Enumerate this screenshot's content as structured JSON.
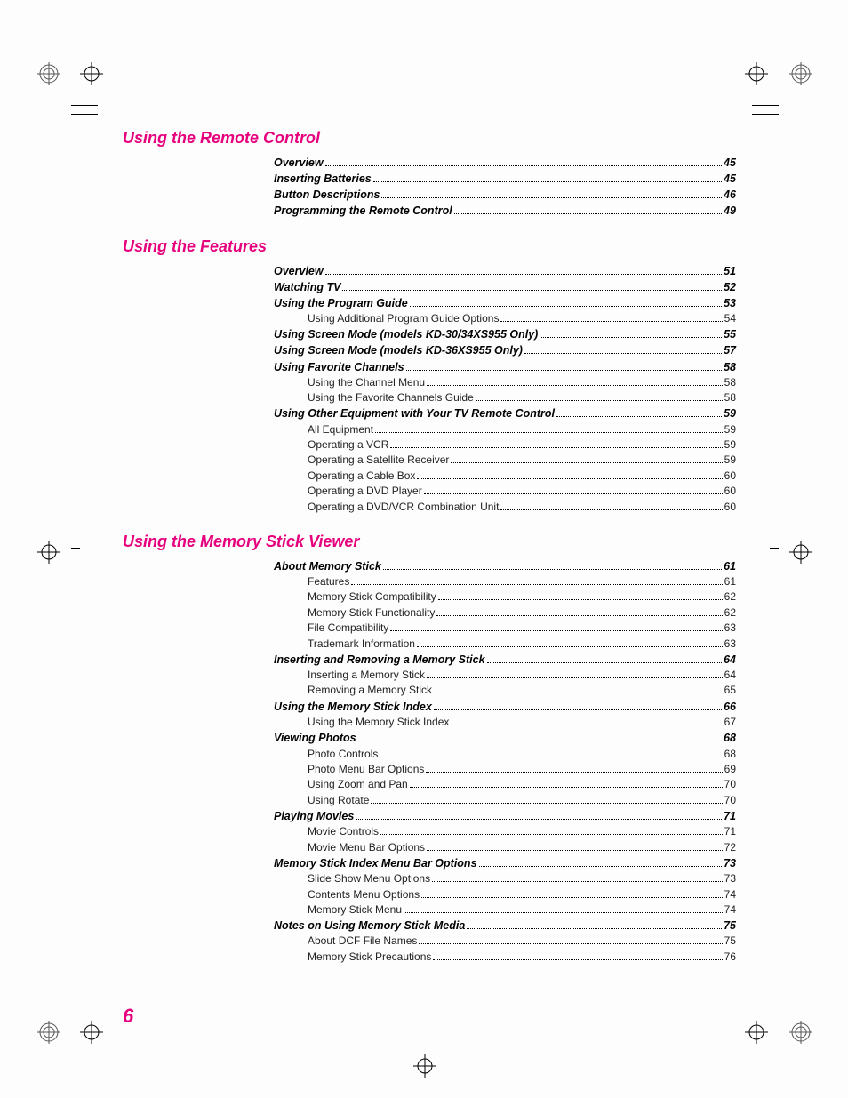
{
  "page_number": "6",
  "colors": {
    "accent": "#e6007e",
    "text": "#000000",
    "background": "#fdfdfd"
  },
  "typography": {
    "section_title_size_pt": 14,
    "row_bold_size_pt": 10,
    "row_size_pt": 9,
    "page_number_size_pt": 16,
    "font_family": "Helvetica"
  },
  "sections": [
    {
      "title": "Using the Remote Control",
      "entries": [
        {
          "label": "Overview",
          "page": "45",
          "bold": true,
          "indent": 0
        },
        {
          "label": "Inserting Batteries",
          "page": "45",
          "bold": true,
          "indent": 0
        },
        {
          "label": "Button Descriptions",
          "page": "46",
          "bold": true,
          "indent": 0
        },
        {
          "label": "Programming the Remote Control",
          "page": "49",
          "bold": true,
          "indent": 0
        }
      ]
    },
    {
      "title": "Using the Features",
      "entries": [
        {
          "label": "Overview",
          "page": "51",
          "bold": true,
          "indent": 0
        },
        {
          "label": "Watching TV",
          "page": "52",
          "bold": true,
          "indent": 0
        },
        {
          "label": "Using the Program Guide",
          "page": "53",
          "bold": true,
          "indent": 0
        },
        {
          "label": "Using Additional Program Guide Options",
          "page": "54",
          "bold": false,
          "indent": 1
        },
        {
          "label": "Using Screen Mode (models KD-30/34XS955 Only)",
          "page": "55",
          "bold": true,
          "indent": 0
        },
        {
          "label": "Using Screen Mode (models KD-36XS955 Only)",
          "page": "57",
          "bold": true,
          "indent": 0
        },
        {
          "label": "Using Favorite Channels",
          "page": "58",
          "bold": true,
          "indent": 0
        },
        {
          "label": "Using the Channel Menu",
          "page": "58",
          "bold": false,
          "indent": 1
        },
        {
          "label": "Using the Favorite Channels Guide",
          "page": "58",
          "bold": false,
          "indent": 1
        },
        {
          "label": "Using Other Equipment with Your TV Remote Control",
          "page": "59",
          "bold": true,
          "indent": 0
        },
        {
          "label": "All Equipment",
          "page": "59",
          "bold": false,
          "indent": 1
        },
        {
          "label": "Operating a VCR",
          "page": "59",
          "bold": false,
          "indent": 1
        },
        {
          "label": "Operating a Satellite Receiver",
          "page": "59",
          "bold": false,
          "indent": 1
        },
        {
          "label": "Operating a Cable Box",
          "page": "60",
          "bold": false,
          "indent": 1
        },
        {
          "label": "Operating a DVD Player",
          "page": "60",
          "bold": false,
          "indent": 1
        },
        {
          "label": "Operating a DVD/VCR Combination Unit",
          "page": "60",
          "bold": false,
          "indent": 1
        }
      ]
    },
    {
      "title": "Using the Memory Stick Viewer",
      "entries": [
        {
          "label": "About Memory Stick",
          "page": "61",
          "bold": true,
          "indent": 0
        },
        {
          "label": "Features",
          "page": "61",
          "bold": false,
          "indent": 1
        },
        {
          "label": "Memory Stick Compatibility",
          "page": "62",
          "bold": false,
          "indent": 1
        },
        {
          "label": "Memory Stick Functionality",
          "page": "62",
          "bold": false,
          "indent": 1
        },
        {
          "label": "File Compatibility",
          "page": "63",
          "bold": false,
          "indent": 1
        },
        {
          "label": "Trademark Information",
          "page": "63",
          "bold": false,
          "indent": 1
        },
        {
          "label": "Inserting and Removing a Memory Stick",
          "page": "64",
          "bold": true,
          "indent": 0
        },
        {
          "label": "Inserting a Memory Stick",
          "page": "64",
          "bold": false,
          "indent": 1
        },
        {
          "label": "Removing a Memory Stick",
          "page": "65",
          "bold": false,
          "indent": 1
        },
        {
          "label": "Using the Memory Stick Index",
          "page": "66",
          "bold": true,
          "indent": 0
        },
        {
          "label": "Using the Memory Stick Index",
          "page": "67",
          "bold": false,
          "indent": 1
        },
        {
          "label": "Viewing Photos",
          "page": "68",
          "bold": true,
          "indent": 0
        },
        {
          "label": "Photo Controls",
          "page": "68",
          "bold": false,
          "indent": 1
        },
        {
          "label": "Photo Menu Bar Options",
          "page": "69",
          "bold": false,
          "indent": 1
        },
        {
          "label": "Using Zoom and Pan",
          "page": "70",
          "bold": false,
          "indent": 1
        },
        {
          "label": "Using Rotate",
          "page": "70",
          "bold": false,
          "indent": 1
        },
        {
          "label": "Playing Movies",
          "page": "71",
          "bold": true,
          "indent": 0
        },
        {
          "label": "Movie Controls",
          "page": "71",
          "bold": false,
          "indent": 1
        },
        {
          "label": "Movie Menu Bar Options",
          "page": "72",
          "bold": false,
          "indent": 1
        },
        {
          "label": "Memory Stick Index Menu Bar Options",
          "page": "73",
          "bold": true,
          "indent": 0
        },
        {
          "label": "Slide Show Menu Options",
          "page": "73",
          "bold": false,
          "indent": 1
        },
        {
          "label": "Contents Menu Options",
          "page": "74",
          "bold": false,
          "indent": 1
        },
        {
          "label": "Memory Stick Menu",
          "page": "74",
          "bold": false,
          "indent": 1
        },
        {
          "label": "Notes on Using Memory Stick Media",
          "page": "75",
          "bold": true,
          "indent": 0
        },
        {
          "label": "About DCF File Names",
          "page": "75",
          "bold": false,
          "indent": 1
        },
        {
          "label": "Memory Stick Precautions",
          "page": "76",
          "bold": false,
          "indent": 1
        }
      ]
    }
  ]
}
